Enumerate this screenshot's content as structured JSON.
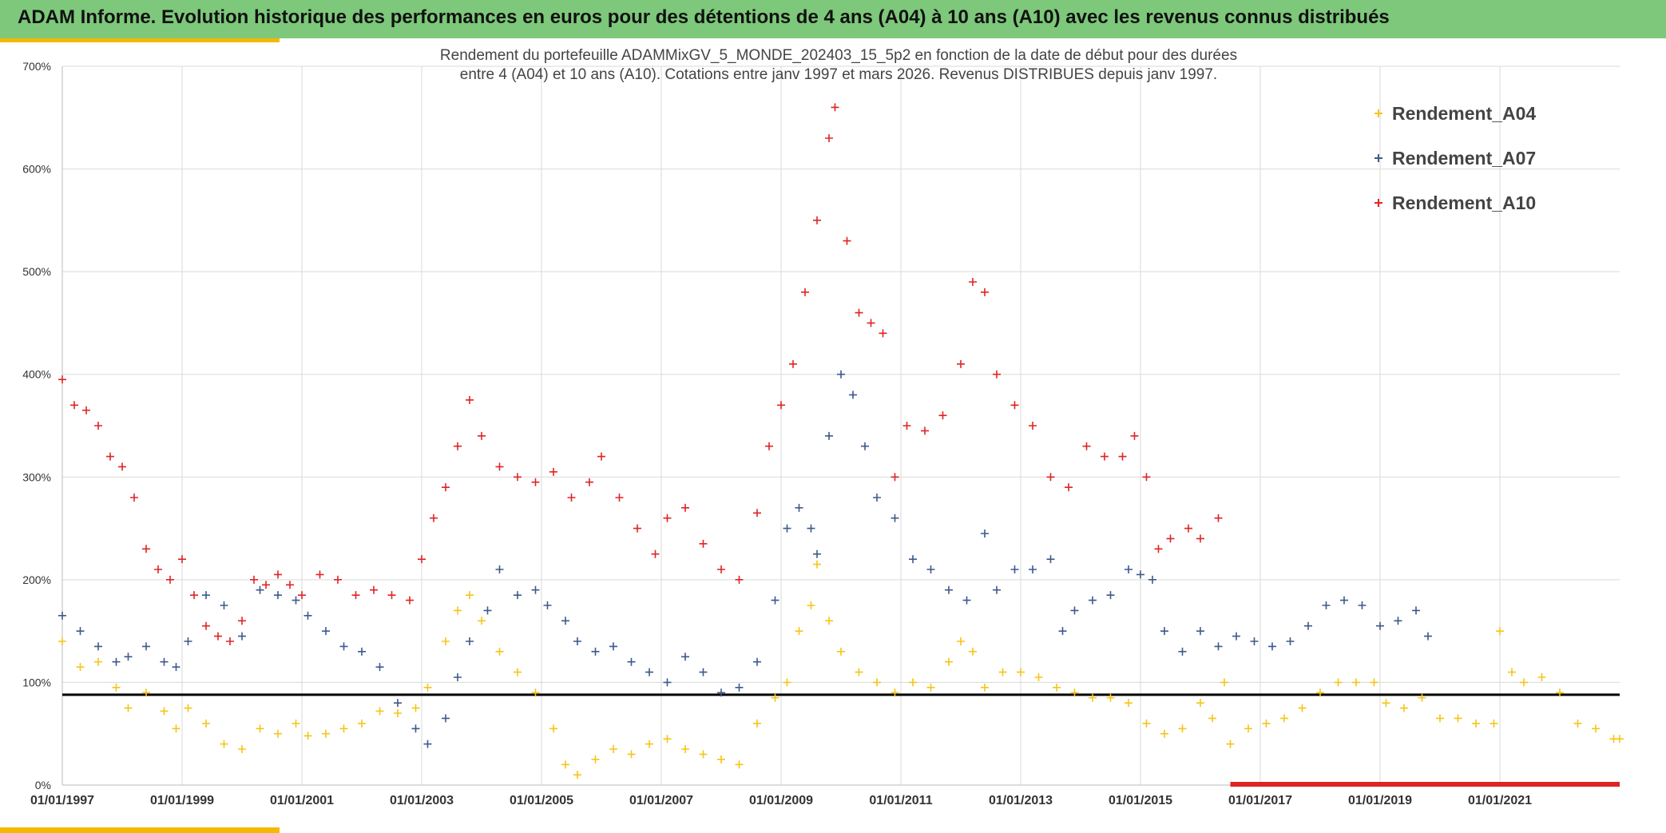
{
  "header": {
    "title": "ADAM Informe. Evolution historique des performances en euros pour des détentions de 4 ans (A04) à 10 ans (A10) avec les revenus connus distribués"
  },
  "colors": {
    "header_bg": "#7dc87a",
    "accent": "#f5b800",
    "a04": "#f5c518",
    "a07": "#3d5a8c",
    "a10": "#e02424",
    "threshold": "#000000",
    "grid": "#d9d9d9"
  },
  "chart_data": {
    "type": "scatter",
    "title_lines": [
      "Rendement du portefeuille ADAMMixGV_5_MONDE_202403_15_5p2  en fonction de la date de début pour des durées",
      "entre 4 (A04) et 10 ans (A10). Cotations entre janv 1997 et mars 2026. Revenus DISTRIBUES depuis janv 1997."
    ],
    "xlabel": "",
    "ylabel": "",
    "x_range": [
      "1997-01-01",
      "2023-01-01"
    ],
    "ylim": [
      0,
      7
    ],
    "y_ticks": [
      "0%",
      "100%",
      "200%",
      "300%",
      "400%",
      "500%",
      "600%",
      "700%"
    ],
    "x_ticks": [
      "01/01/1997",
      "01/01/1999",
      "01/01/2001",
      "01/01/2003",
      "01/01/2005",
      "01/01/2007",
      "01/01/2009",
      "01/01/2011",
      "01/01/2013",
      "01/01/2015",
      "01/01/2017",
      "01/01/2019",
      "01/01/2021"
    ],
    "grid": true,
    "legend_position": "top-right",
    "threshold": 0.88,
    "series": [
      {
        "name": "Rendement_A04",
        "color": "#f5c518",
        "points": [
          [
            1997.0,
            1.4
          ],
          [
            1997.3,
            1.15
          ],
          [
            1997.6,
            1.2
          ],
          [
            1997.9,
            0.95
          ],
          [
            1998.1,
            0.75
          ],
          [
            1998.4,
            0.9
          ],
          [
            1998.7,
            0.72
          ],
          [
            1998.9,
            0.55
          ],
          [
            1999.1,
            0.75
          ],
          [
            1999.4,
            0.6
          ],
          [
            1999.7,
            0.4
          ],
          [
            2000.0,
            0.35
          ],
          [
            2000.3,
            0.55
          ],
          [
            2000.6,
            0.5
          ],
          [
            2000.9,
            0.6
          ],
          [
            2001.1,
            0.48
          ],
          [
            2001.4,
            0.5
          ],
          [
            2001.7,
            0.55
          ],
          [
            2002.0,
            0.6
          ],
          [
            2002.3,
            0.72
          ],
          [
            2002.6,
            0.7
          ],
          [
            2002.9,
            0.75
          ],
          [
            2003.1,
            0.95
          ],
          [
            2003.4,
            1.4
          ],
          [
            2003.6,
            1.7
          ],
          [
            2003.8,
            1.85
          ],
          [
            2004.0,
            1.6
          ],
          [
            2004.3,
            1.3
          ],
          [
            2004.6,
            1.1
          ],
          [
            2004.9,
            0.9
          ],
          [
            2005.2,
            0.55
          ],
          [
            2005.4,
            0.2
          ],
          [
            2005.6,
            0.1
          ],
          [
            2005.9,
            0.25
          ],
          [
            2006.2,
            0.35
          ],
          [
            2006.5,
            0.3
          ],
          [
            2006.8,
            0.4
          ],
          [
            2007.1,
            0.45
          ],
          [
            2007.4,
            0.35
          ],
          [
            2007.7,
            0.3
          ],
          [
            2008.0,
            0.25
          ],
          [
            2008.3,
            0.2
          ],
          [
            2008.6,
            0.6
          ],
          [
            2008.9,
            0.85
          ],
          [
            2009.1,
            1.0
          ],
          [
            2009.3,
            1.5
          ],
          [
            2009.5,
            1.75
          ],
          [
            2009.6,
            2.15
          ],
          [
            2009.8,
            1.6
          ],
          [
            2010.0,
            1.3
          ],
          [
            2010.3,
            1.1
          ],
          [
            2010.6,
            1.0
          ],
          [
            2010.9,
            0.9
          ],
          [
            2011.2,
            1.0
          ],
          [
            2011.5,
            0.95
          ],
          [
            2011.8,
            1.2
          ],
          [
            2012.0,
            1.4
          ],
          [
            2012.2,
            1.3
          ],
          [
            2012.4,
            0.95
          ],
          [
            2012.7,
            1.1
          ],
          [
            2013.0,
            1.1
          ],
          [
            2013.3,
            1.05
          ],
          [
            2013.6,
            0.95
          ],
          [
            2013.9,
            0.9
          ],
          [
            2014.2,
            0.85
          ],
          [
            2014.5,
            0.85
          ],
          [
            2014.8,
            0.8
          ],
          [
            2015.1,
            0.6
          ],
          [
            2015.4,
            0.5
          ],
          [
            2015.7,
            0.55
          ],
          [
            2016.0,
            0.8
          ],
          [
            2016.2,
            0.65
          ],
          [
            2016.4,
            1.0
          ],
          [
            2016.5,
            0.4
          ],
          [
            2016.8,
            0.55
          ],
          [
            2017.1,
            0.6
          ],
          [
            2017.4,
            0.65
          ],
          [
            2017.7,
            0.75
          ],
          [
            2018.0,
            0.9
          ],
          [
            2018.3,
            1.0
          ],
          [
            2018.6,
            1.0
          ],
          [
            2018.9,
            1.0
          ],
          [
            2019.1,
            0.8
          ],
          [
            2019.4,
            0.75
          ],
          [
            2019.7,
            0.85
          ],
          [
            2020.0,
            0.65
          ],
          [
            2020.3,
            0.65
          ],
          [
            2020.6,
            0.6
          ],
          [
            2020.9,
            0.6
          ],
          [
            2021.0,
            1.5
          ],
          [
            2021.2,
            1.1
          ],
          [
            2021.4,
            1.0
          ],
          [
            2021.7,
            1.05
          ],
          [
            2022.0,
            0.9
          ],
          [
            2022.3,
            0.6
          ],
          [
            2022.6,
            0.55
          ],
          [
            2022.9,
            0.45
          ],
          [
            2023.0,
            0.45
          ]
        ]
      },
      {
        "name": "Rendement_A07",
        "color": "#3d5a8c",
        "points": [
          [
            1997.0,
            1.65
          ],
          [
            1997.3,
            1.5
          ],
          [
            1997.6,
            1.35
          ],
          [
            1997.9,
            1.2
          ],
          [
            1998.1,
            1.25
          ],
          [
            1998.4,
            1.35
          ],
          [
            1998.7,
            1.2
          ],
          [
            1998.9,
            1.15
          ],
          [
            1999.1,
            1.4
          ],
          [
            1999.4,
            1.85
          ],
          [
            1999.7,
            1.75
          ],
          [
            2000.0,
            1.45
          ],
          [
            2000.3,
            1.9
          ],
          [
            2000.6,
            1.85
          ],
          [
            2000.9,
            1.8
          ],
          [
            2001.1,
            1.65
          ],
          [
            2001.4,
            1.5
          ],
          [
            2001.7,
            1.35
          ],
          [
            2002.0,
            1.3
          ],
          [
            2002.3,
            1.15
          ],
          [
            2002.6,
            0.8
          ],
          [
            2002.9,
            0.55
          ],
          [
            2003.1,
            0.4
          ],
          [
            2003.4,
            0.65
          ],
          [
            2003.6,
            1.05
          ],
          [
            2003.8,
            1.4
          ],
          [
            2004.1,
            1.7
          ],
          [
            2004.3,
            2.1
          ],
          [
            2004.6,
            1.85
          ],
          [
            2004.9,
            1.9
          ],
          [
            2005.1,
            1.75
          ],
          [
            2005.4,
            1.6
          ],
          [
            2005.6,
            1.4
          ],
          [
            2005.9,
            1.3
          ],
          [
            2006.2,
            1.35
          ],
          [
            2006.5,
            1.2
          ],
          [
            2006.8,
            1.1
          ],
          [
            2007.1,
            1.0
          ],
          [
            2007.4,
            1.25
          ],
          [
            2007.7,
            1.1
          ],
          [
            2008.0,
            0.9
          ],
          [
            2008.3,
            0.95
          ],
          [
            2008.6,
            1.2
          ],
          [
            2008.9,
            1.8
          ],
          [
            2009.1,
            2.5
          ],
          [
            2009.3,
            2.7
          ],
          [
            2009.5,
            2.5
          ],
          [
            2009.6,
            2.25
          ],
          [
            2009.8,
            3.4
          ],
          [
            2010.0,
            4.0
          ],
          [
            2010.2,
            3.8
          ],
          [
            2010.4,
            3.3
          ],
          [
            2010.6,
            2.8
          ],
          [
            2010.9,
            2.6
          ],
          [
            2011.2,
            2.2
          ],
          [
            2011.5,
            2.1
          ],
          [
            2011.8,
            1.9
          ],
          [
            2012.1,
            1.8
          ],
          [
            2012.4,
            2.45
          ],
          [
            2012.6,
            1.9
          ],
          [
            2012.9,
            2.1
          ],
          [
            2013.2,
            2.1
          ],
          [
            2013.5,
            2.2
          ],
          [
            2013.7,
            1.5
          ],
          [
            2013.9,
            1.7
          ],
          [
            2014.2,
            1.8
          ],
          [
            2014.5,
            1.85
          ],
          [
            2014.8,
            2.1
          ],
          [
            2015.0,
            2.05
          ],
          [
            2015.2,
            2.0
          ],
          [
            2015.4,
            1.5
          ],
          [
            2015.7,
            1.3
          ],
          [
            2016.0,
            1.5
          ],
          [
            2016.3,
            1.35
          ],
          [
            2016.6,
            1.45
          ],
          [
            2016.9,
            1.4
          ],
          [
            2017.2,
            1.35
          ],
          [
            2017.5,
            1.4
          ],
          [
            2017.8,
            1.55
          ],
          [
            2018.1,
            1.75
          ],
          [
            2018.4,
            1.8
          ],
          [
            2018.7,
            1.75
          ],
          [
            2019.0,
            1.55
          ],
          [
            2019.3,
            1.6
          ],
          [
            2019.6,
            1.7
          ],
          [
            2019.8,
            1.45
          ]
        ]
      },
      {
        "name": "Rendement_A10",
        "color": "#e02424",
        "points": [
          [
            1997.0,
            3.95
          ],
          [
            1997.2,
            3.7
          ],
          [
            1997.4,
            3.65
          ],
          [
            1997.6,
            3.5
          ],
          [
            1997.8,
            3.2
          ],
          [
            1998.0,
            3.1
          ],
          [
            1998.2,
            2.8
          ],
          [
            1998.4,
            2.3
          ],
          [
            1998.6,
            2.1
          ],
          [
            1998.8,
            2.0
          ],
          [
            1999.0,
            2.2
          ],
          [
            1999.2,
            1.85
          ],
          [
            1999.4,
            1.55
          ],
          [
            1999.6,
            1.45
          ],
          [
            1999.8,
            1.4
          ],
          [
            2000.0,
            1.6
          ],
          [
            2000.2,
            2.0
          ],
          [
            2000.4,
            1.95
          ],
          [
            2000.6,
            2.05
          ],
          [
            2000.8,
            1.95
          ],
          [
            2001.0,
            1.85
          ],
          [
            2001.3,
            2.05
          ],
          [
            2001.6,
            2.0
          ],
          [
            2001.9,
            1.85
          ],
          [
            2002.2,
            1.9
          ],
          [
            2002.5,
            1.85
          ],
          [
            2002.8,
            1.8
          ],
          [
            2003.0,
            2.2
          ],
          [
            2003.2,
            2.6
          ],
          [
            2003.4,
            2.9
          ],
          [
            2003.6,
            3.3
          ],
          [
            2003.8,
            3.75
          ],
          [
            2004.0,
            3.4
          ],
          [
            2004.3,
            3.1
          ],
          [
            2004.6,
            3.0
          ],
          [
            2004.9,
            2.95
          ],
          [
            2005.2,
            3.05
          ],
          [
            2005.5,
            2.8
          ],
          [
            2005.8,
            2.95
          ],
          [
            2006.0,
            3.2
          ],
          [
            2006.3,
            2.8
          ],
          [
            2006.6,
            2.5
          ],
          [
            2006.9,
            2.25
          ],
          [
            2007.1,
            2.6
          ],
          [
            2007.4,
            2.7
          ],
          [
            2007.7,
            2.35
          ],
          [
            2008.0,
            2.1
          ],
          [
            2008.3,
            2.0
          ],
          [
            2008.6,
            2.65
          ],
          [
            2008.8,
            3.3
          ],
          [
            2009.0,
            3.7
          ],
          [
            2009.2,
            4.1
          ],
          [
            2009.4,
            4.8
          ],
          [
            2009.6,
            5.5
          ],
          [
            2009.8,
            6.3
          ],
          [
            2009.9,
            6.6
          ],
          [
            2010.1,
            5.3
          ],
          [
            2010.3,
            4.6
          ],
          [
            2010.5,
            4.5
          ],
          [
            2010.7,
            4.4
          ],
          [
            2010.9,
            3.0
          ],
          [
            2011.1,
            3.5
          ],
          [
            2011.4,
            3.45
          ],
          [
            2011.7,
            3.6
          ],
          [
            2012.0,
            4.1
          ],
          [
            2012.2,
            4.9
          ],
          [
            2012.4,
            4.8
          ],
          [
            2012.6,
            4.0
          ],
          [
            2012.9,
            3.7
          ],
          [
            2013.2,
            3.5
          ],
          [
            2013.5,
            3.0
          ],
          [
            2013.8,
            2.9
          ],
          [
            2014.1,
            3.3
          ],
          [
            2014.4,
            3.2
          ],
          [
            2014.7,
            3.2
          ],
          [
            2014.9,
            3.4
          ],
          [
            2015.1,
            3.0
          ],
          [
            2015.3,
            2.3
          ],
          [
            2015.5,
            2.4
          ],
          [
            2015.8,
            2.5
          ],
          [
            2016.0,
            2.4
          ],
          [
            2016.3,
            2.6
          ]
        ]
      }
    ],
    "revenue_band": {
      "label": "Revenus distribués",
      "x_range": [
        2016.5,
        2023.0
      ],
      "y": 0.0,
      "color": "#e02424"
    }
  }
}
